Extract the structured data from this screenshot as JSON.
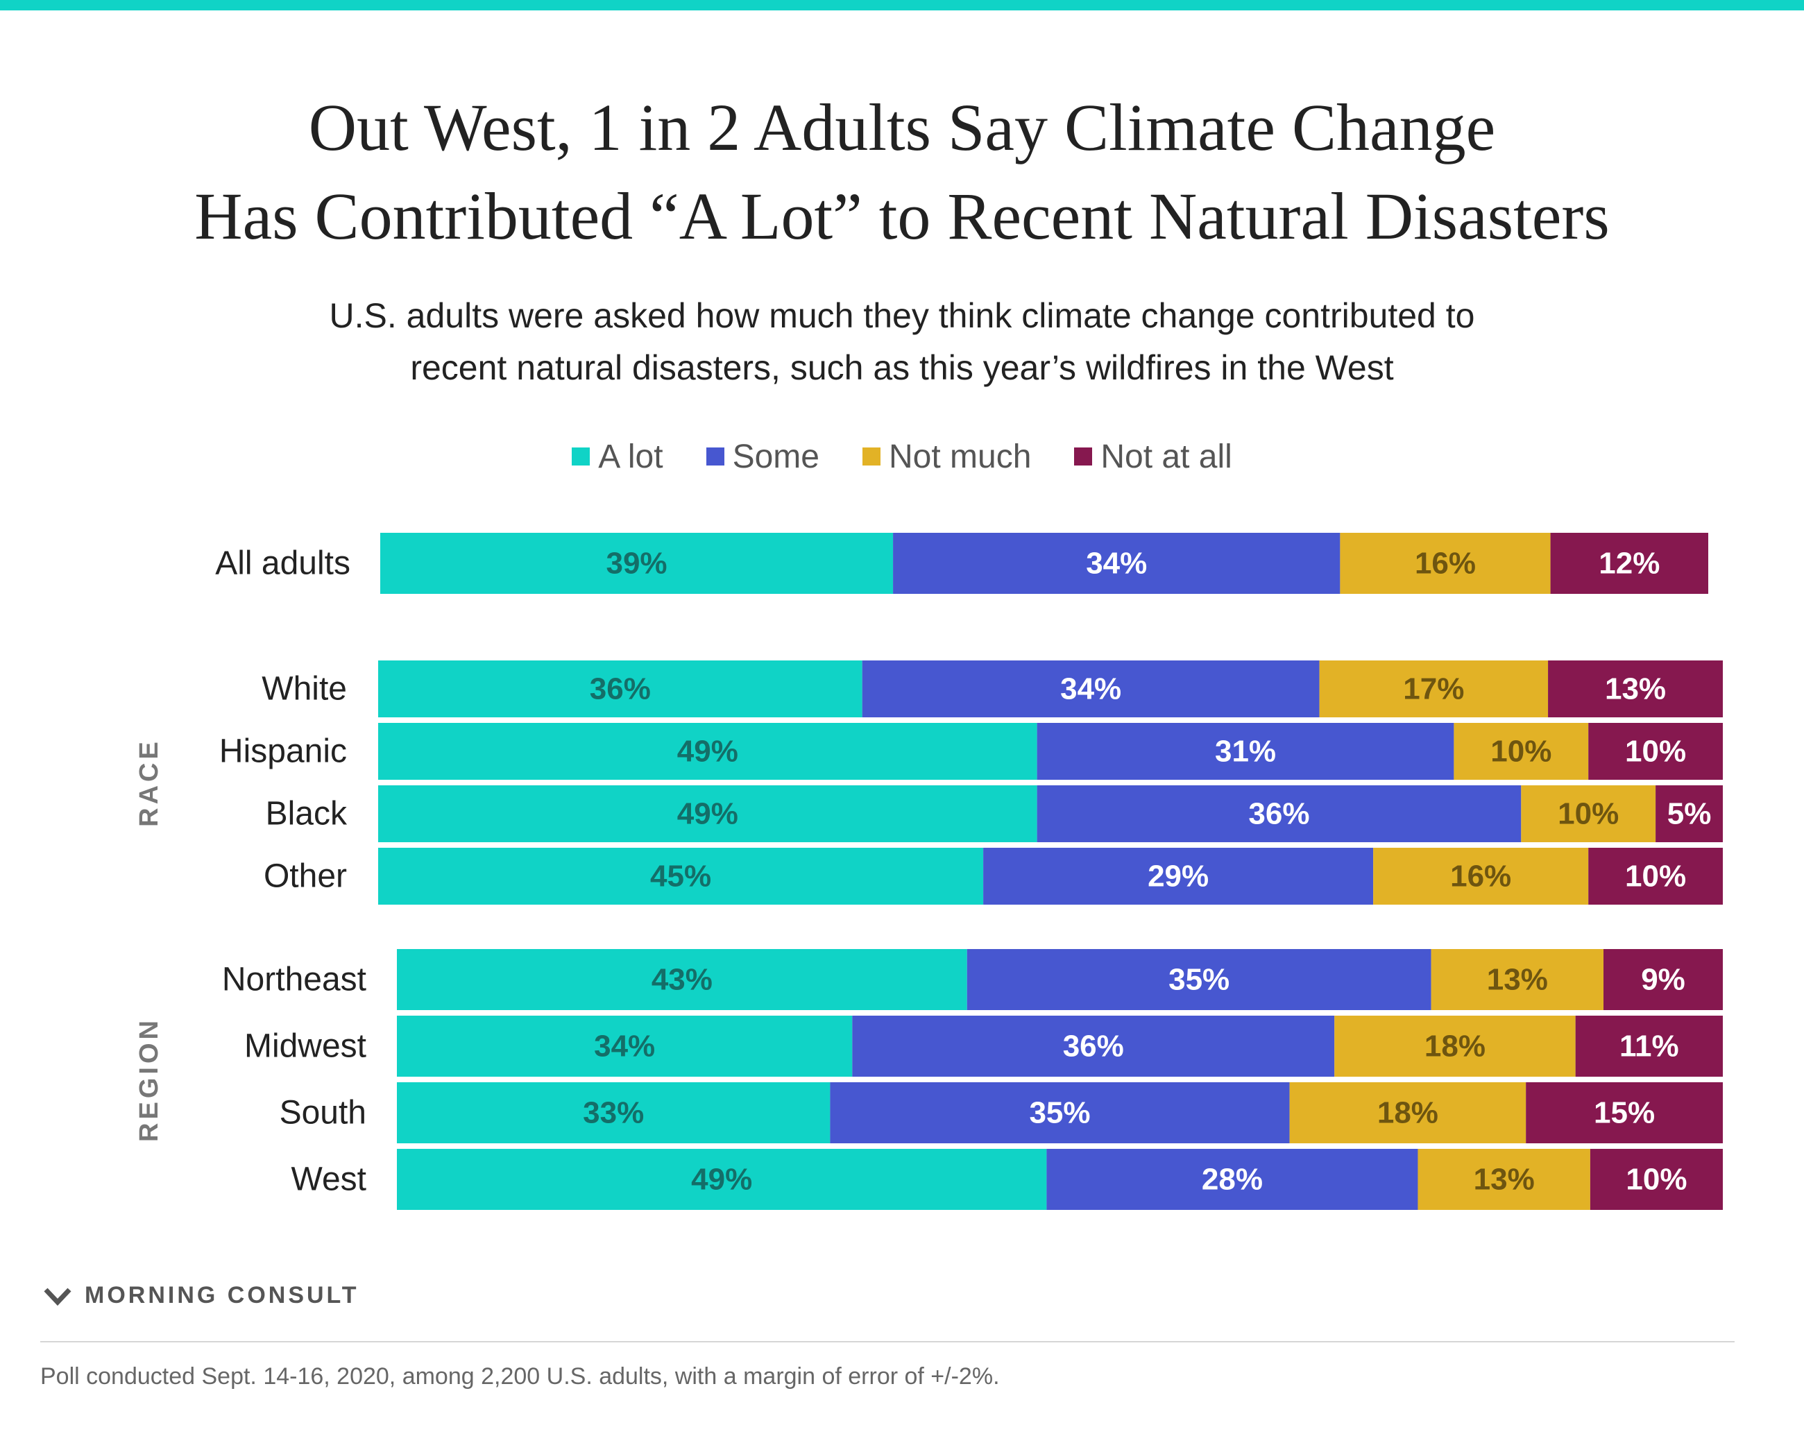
{
  "header": {
    "title_line1": "Out West, 1 in 2 Adults Say Climate Change",
    "title_line2": "Has Contributed “A Lot” to Recent Natural Disasters",
    "subtitle_line1": "U.S. adults were asked how much they think climate change contributed to",
    "subtitle_line2": "recent natural disasters, such as this year’s wildfires in the West"
  },
  "legend": [
    {
      "label": "A lot",
      "color": "#10d3c6"
    },
    {
      "label": "Some",
      "color": "#4757d0"
    },
    {
      "label": "Not much",
      "color": "#e2b226"
    },
    {
      "label": "Not at all",
      "color": "#86184f"
    }
  ],
  "chart_data": {
    "type": "bar",
    "orientation": "horizontal-stacked-100",
    "series_names": [
      "A lot",
      "Some",
      "Not much",
      "Not at all"
    ],
    "groups": [
      {
        "label": "",
        "rows": [
          {
            "label": "All adults",
            "values": [
              39,
              34,
              16,
              12
            ]
          }
        ]
      },
      {
        "label": "RACE",
        "rows": [
          {
            "label": "White",
            "values": [
              36,
              34,
              17,
              13
            ]
          },
          {
            "label": "Hispanic",
            "values": [
              49,
              31,
              10,
              10
            ]
          },
          {
            "label": "Black",
            "values": [
              49,
              36,
              10,
              5
            ]
          },
          {
            "label": "Other",
            "values": [
              45,
              29,
              16,
              10
            ]
          }
        ]
      },
      {
        "label": "REGION",
        "rows": [
          {
            "label": "Northeast",
            "values": [
              43,
              35,
              13,
              9
            ]
          },
          {
            "label": "Midwest",
            "values": [
              34,
              36,
              18,
              11
            ]
          },
          {
            "label": "South",
            "values": [
              33,
              35,
              18,
              15
            ]
          },
          {
            "label": "West",
            "values": [
              49,
              28,
              13,
              10
            ]
          }
        ]
      }
    ],
    "value_suffix": "%",
    "label_colors": [
      "#146e68",
      "#ffffff",
      "#6e5510",
      "#ffffff"
    ]
  },
  "footer": {
    "brand": "MORNING CONSULT",
    "note": "Poll conducted Sept. 14-16, 2020, among 2,200 U.S. adults, with a margin of error of +/-2%."
  }
}
